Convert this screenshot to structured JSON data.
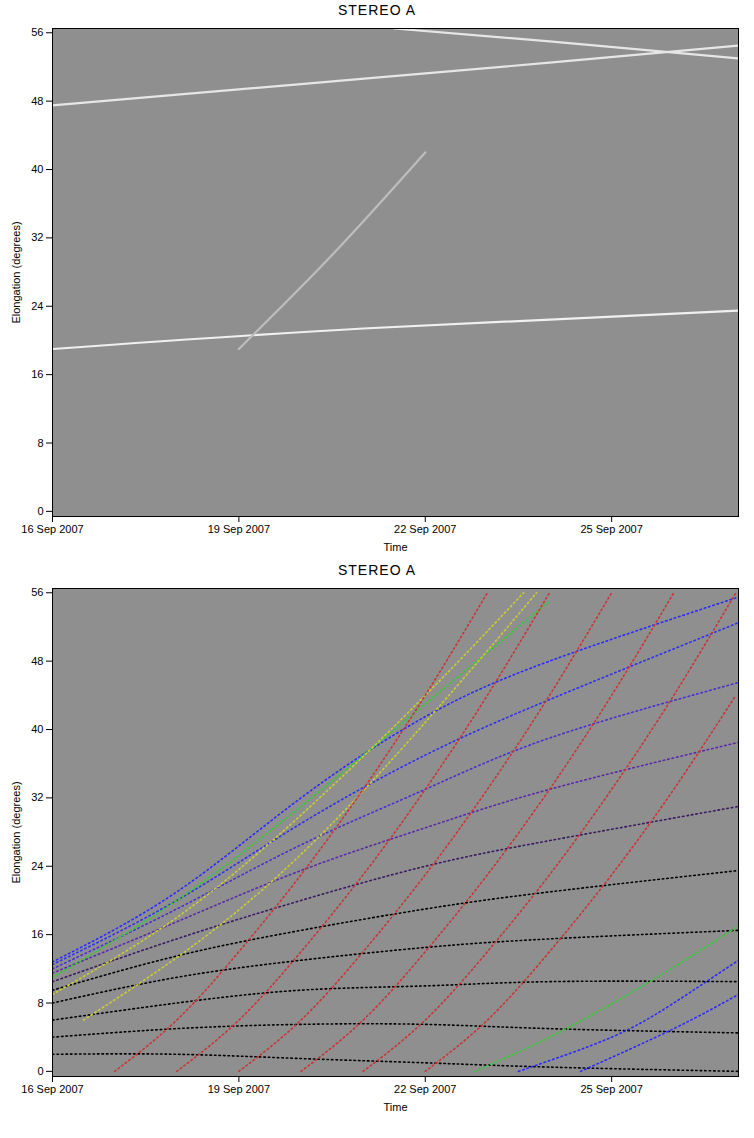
{
  "chart_data": [
    {
      "type": "line",
      "title": "STEREO A",
      "x_label": "Time",
      "y_label": "Elongation (degrees)",
      "xlim": [
        "2007-09-16T00:00Z",
        "2007-09-27T01:00Z"
      ],
      "xticks": [
        {
          "value": "2007-09-16T00:00Z",
          "label": "16 Sep 2007"
        },
        {
          "value": "2007-09-19T00:00Z",
          "label": "19 Sep 2007"
        },
        {
          "value": "2007-09-22T00:00Z",
          "label": "22 Sep 2007"
        },
        {
          "value": "2007-09-25T00:00Z",
          "label": "25 Sep 2007"
        }
      ],
      "ylim": [
        -0.6,
        56.5
      ],
      "yticks": [
        0,
        8,
        16,
        24,
        32,
        40,
        48,
        56
      ],
      "series": [
        {
          "color": "#f0f0f0",
          "line_style": "solid",
          "x": [
            "2007-09-16T00:00Z",
            "2007-09-21T00:00Z",
            "2007-09-27T01:00Z"
          ],
          "values": [
            19,
            21.4,
            23.5
          ]
        },
        {
          "color": "#e6e6e6",
          "line_style": "solid",
          "x": [
            "2007-09-16T00:00Z",
            "2007-09-20T00:00Z",
            "2007-09-24T00:00Z",
            "2007-09-27T01:00Z"
          ],
          "values": [
            47.5,
            50,
            52.5,
            54.5
          ]
        },
        {
          "color": "#e6e6e6",
          "line_style": "solid",
          "x": [
            "2007-09-21T12:00Z",
            "2007-09-24T00:00Z",
            "2007-09-27T01:00Z"
          ],
          "values": [
            56.5,
            55,
            53
          ]
        },
        {
          "color": "#bdbdbd",
          "line_style": "solid",
          "x": [
            "2007-09-19T00:00Z",
            "2007-09-20T12:00Z",
            "2007-09-22T00:00Z"
          ],
          "values": [
            19,
            30,
            42
          ]
        }
      ]
    },
    {
      "type": "line",
      "title": "STEREO A",
      "x_label": "Time",
      "y_label": "Elongation (degrees)",
      "xlim": [
        "2007-09-16T00:00Z",
        "2007-09-27T01:00Z"
      ],
      "xticks": [
        {
          "value": "2007-09-16T00:00Z",
          "label": "16 Sep 2007"
        },
        {
          "value": "2007-09-19T00:00Z",
          "label": "19 Sep 2007"
        },
        {
          "value": "2007-09-22T00:00Z",
          "label": "22 Sep 2007"
        },
        {
          "value": "2007-09-25T00:00Z",
          "label": "25 Sep 2007"
        }
      ],
      "ylim": [
        -0.6,
        56.5
      ],
      "yticks": [
        0,
        8,
        16,
        24,
        32,
        40,
        48,
        56
      ],
      "series": [
        {
          "color": "#2a2aff",
          "line_style": "dotted",
          "x": [
            "2007-09-16T00:00Z",
            "2007-09-18T00:00Z",
            "2007-09-20T00:00Z",
            "2007-09-22T00:00Z",
            "2007-09-24T00:00Z",
            "2007-09-27T01:00Z"
          ],
          "values": [
            12.8,
            21,
            32,
            41.5,
            48,
            55.5
          ]
        },
        {
          "color": "#3030f0",
          "line_style": "dotted",
          "x": [
            "2007-09-16T00:00Z",
            "2007-09-18T00:00Z",
            "2007-09-20T00:00Z",
            "2007-09-22T00:00Z",
            "2007-09-24T00:00Z",
            "2007-09-27T01:00Z"
          ],
          "values": [
            12.5,
            20,
            29,
            37,
            43.5,
            52.5
          ]
        },
        {
          "color": "#4a30d0",
          "line_style": "dotted",
          "x": [
            "2007-09-16T00:00Z",
            "2007-09-18T00:00Z",
            "2007-09-20T00:00Z",
            "2007-09-22T00:00Z",
            "2007-09-24T00:00Z",
            "2007-09-27T01:00Z"
          ],
          "values": [
            12,
            19,
            26.5,
            33,
            39,
            45.5
          ]
        },
        {
          "color": "#5a2aa8",
          "line_style": "dotted",
          "x": [
            "2007-09-16T00:00Z",
            "2007-09-18T00:00Z",
            "2007-09-20T00:00Z",
            "2007-09-22T00:00Z",
            "2007-09-24T00:00Z",
            "2007-09-27T01:00Z"
          ],
          "values": [
            11.5,
            17.5,
            23.5,
            28.5,
            33,
            38.5
          ]
        },
        {
          "color": "#3a1a60",
          "line_style": "dotted",
          "x": [
            "2007-09-16T00:00Z",
            "2007-09-18T00:00Z",
            "2007-09-20T00:00Z",
            "2007-09-22T00:00Z",
            "2007-09-24T00:00Z",
            "2007-09-27T01:00Z"
          ],
          "values": [
            10.5,
            15.5,
            20,
            24,
            27,
            31
          ]
        },
        {
          "color": "#000000",
          "line_style": "dotted",
          "x": [
            "2007-09-16T00:00Z",
            "2007-09-18T00:00Z",
            "2007-09-20T00:00Z",
            "2007-09-22T00:00Z",
            "2007-09-24T00:00Z",
            "2007-09-27T01:00Z"
          ],
          "values": [
            9.5,
            13.5,
            16.5,
            19,
            21,
            23.5
          ]
        },
        {
          "color": "#000000",
          "line_style": "dotted",
          "x": [
            "2007-09-16T00:00Z",
            "2007-09-18T00:00Z",
            "2007-09-20T00:00Z",
            "2007-09-22T00:00Z",
            "2007-09-24T00:00Z",
            "2007-09-27T01:00Z"
          ],
          "values": [
            8,
            11,
            13,
            14.5,
            15.5,
            16.5
          ]
        },
        {
          "color": "#000000",
          "line_style": "dotted",
          "x": [
            "2007-09-16T00:00Z",
            "2007-09-18T00:00Z",
            "2007-09-20T00:00Z",
            "2007-09-22T00:00Z",
            "2007-09-24T00:00Z",
            "2007-09-27T01:00Z"
          ],
          "values": [
            6,
            8,
            9.5,
            10,
            10.5,
            10.5
          ]
        },
        {
          "color": "#000000",
          "line_style": "dotted",
          "x": [
            "2007-09-16T00:00Z",
            "2007-09-18T00:00Z",
            "2007-09-20T00:00Z",
            "2007-09-22T00:00Z",
            "2007-09-24T00:00Z",
            "2007-09-27T01:00Z"
          ],
          "values": [
            4,
            5,
            5.5,
            5.5,
            5,
            4.5
          ]
        },
        {
          "color": "#000000",
          "line_style": "dotted",
          "x": [
            "2007-09-16T00:00Z",
            "2007-09-18T00:00Z",
            "2007-09-20T00:00Z",
            "2007-09-22T00:00Z",
            "2007-09-24T00:00Z",
            "2007-09-27T01:00Z"
          ],
          "values": [
            2,
            2,
            1.5,
            1,
            0.5,
            0
          ]
        },
        {
          "color": "#33cc33",
          "line_style": "dotted",
          "x": [
            "2007-09-16T00:00Z",
            "2007-09-18T00:00Z",
            "2007-09-20T00:00Z",
            "2007-09-22T00:00Z",
            "2007-09-24T00:00Z"
          ],
          "values": [
            11,
            20,
            31,
            43,
            55
          ]
        },
        {
          "color": "#cccc33",
          "line_style": "dotted",
          "x": [
            "2007-09-16T00:00Z",
            "2007-09-18T00:00Z",
            "2007-09-20T00:00Z",
            "2007-09-22T00:00Z",
            "2007-09-23T14:00Z"
          ],
          "values": [
            9,
            18,
            30,
            44,
            56
          ]
        },
        {
          "color": "#cccc33",
          "line_style": "dotted",
          "x": [
            "2007-09-16T12:00Z",
            "2007-09-18T12:00Z",
            "2007-09-20T12:00Z",
            "2007-09-22T12:00Z",
            "2007-09-23T19:00Z"
          ],
          "values": [
            6,
            16,
            29,
            45,
            56
          ]
        },
        {
          "color": "#cc3333",
          "line_style": "dotted",
          "x": [
            "2007-09-17T00:00Z",
            "2007-09-18T00:00Z",
            "2007-09-19T00:00Z",
            "2007-09-20T00:00Z",
            "2007-09-21T00:00Z",
            "2007-09-22T00:00Z",
            "2007-09-23T00:00Z"
          ],
          "values": [
            0,
            6,
            14,
            23,
            33,
            44,
            56
          ]
        },
        {
          "color": "#cc3333",
          "line_style": "dotted",
          "x": [
            "2007-09-18T00:00Z",
            "2007-09-19T00:00Z",
            "2007-09-20T00:00Z",
            "2007-09-21T00:00Z",
            "2007-09-22T00:00Z",
            "2007-09-23T00:00Z",
            "2007-09-24T00:00Z"
          ],
          "values": [
            0,
            6,
            14,
            23,
            33,
            44,
            56
          ]
        },
        {
          "color": "#cc3333",
          "line_style": "dotted",
          "x": [
            "2007-09-19T00:00Z",
            "2007-09-20T00:00Z",
            "2007-09-21T00:00Z",
            "2007-09-22T00:00Z",
            "2007-09-23T00:00Z",
            "2007-09-24T00:00Z",
            "2007-09-25T00:00Z"
          ],
          "values": [
            0,
            6,
            14,
            23,
            33,
            44,
            56
          ]
        },
        {
          "color": "#cc3333",
          "line_style": "dotted",
          "x": [
            "2007-09-20T00:00Z",
            "2007-09-21T00:00Z",
            "2007-09-22T00:00Z",
            "2007-09-23T00:00Z",
            "2007-09-24T00:00Z",
            "2007-09-25T00:00Z",
            "2007-09-26T00:00Z"
          ],
          "values": [
            0,
            6,
            14,
            23,
            33,
            44,
            56
          ]
        },
        {
          "color": "#cc3333",
          "line_style": "dotted",
          "x": [
            "2007-09-21T00:00Z",
            "2007-09-22T00:00Z",
            "2007-09-23T00:00Z",
            "2007-09-24T00:00Z",
            "2007-09-25T00:00Z",
            "2007-09-26T00:00Z",
            "2007-09-27T00:00Z"
          ],
          "values": [
            0,
            6,
            14,
            23,
            33,
            44,
            56
          ]
        },
        {
          "color": "#cc3333",
          "line_style": "dotted",
          "x": [
            "2007-09-22T00:00Z",
            "2007-09-23T00:00Z",
            "2007-09-24T00:00Z",
            "2007-09-25T00:00Z",
            "2007-09-26T00:00Z",
            "2007-09-27T00:00Z"
          ],
          "values": [
            0,
            6,
            14,
            23,
            33,
            44
          ]
        },
        {
          "color": "#33cc33",
          "line_style": "dotted",
          "x": [
            "2007-09-22T19:00Z",
            "2007-09-24T00:00Z",
            "2007-09-25T12:00Z",
            "2007-09-27T01:00Z"
          ],
          "values": [
            0,
            4,
            10,
            17
          ]
        },
        {
          "color": "#2a2aff",
          "line_style": "dotted",
          "x": [
            "2007-09-23T12:00Z",
            "2007-09-25T00:00Z",
            "2007-09-26T00:00Z",
            "2007-09-27T01:00Z"
          ],
          "values": [
            0,
            4,
            8,
            13
          ]
        },
        {
          "color": "#2a2aff",
          "line_style": "dotted",
          "x": [
            "2007-09-24T12:00Z",
            "2007-09-26T00:00Z",
            "2007-09-27T01:00Z"
          ],
          "values": [
            0,
            5,
            9
          ]
        }
      ]
    }
  ]
}
